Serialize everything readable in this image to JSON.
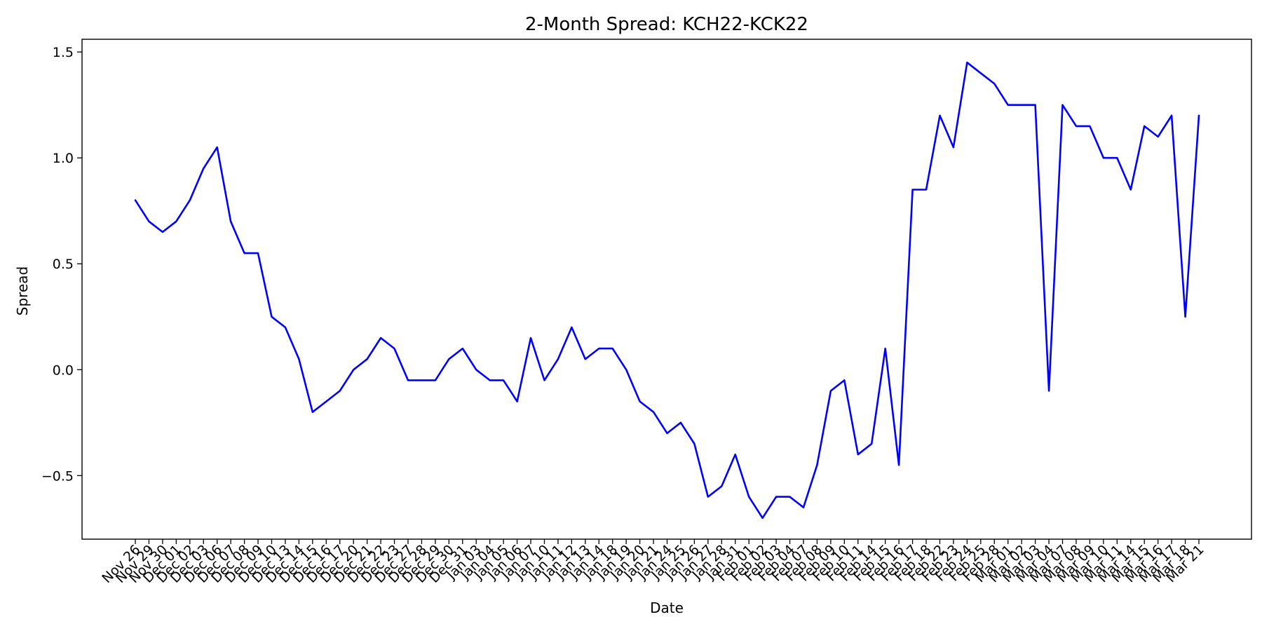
{
  "chart_data": {
    "type": "line",
    "title": "2-Month Spread: KCH22-KCK22",
    "xlabel": "Date",
    "ylabel": "Spread",
    "ylim": [
      -0.8,
      1.56
    ],
    "yticks": [
      -0.5,
      0.0,
      0.5,
      1.0,
      1.5
    ],
    "ytick_labels": [
      "−0.5",
      "0.0",
      "0.5",
      "1.0",
      "1.5"
    ],
    "grid": false,
    "line_color": "#0000ff",
    "categories": [
      "Nov 26",
      "Nov 29",
      "Nov 30",
      "Dec 01",
      "Dec 02",
      "Dec 03",
      "Dec 06",
      "Dec 07",
      "Dec 08",
      "Dec 09",
      "Dec 10",
      "Dec 13",
      "Dec 14",
      "Dec 15",
      "Dec 16",
      "Dec 17",
      "Dec 20",
      "Dec 21",
      "Dec 22",
      "Dec 23",
      "Dec 27",
      "Dec 28",
      "Dec 29",
      "Dec 30",
      "Dec 31",
      "Jan 03",
      "Jan 04",
      "Jan 05",
      "Jan 06",
      "Jan 07",
      "Jan 10",
      "Jan 11",
      "Jan 12",
      "Jan 13",
      "Jan 14",
      "Jan 18",
      "Jan 19",
      "Jan 20",
      "Jan 21",
      "Jan 24",
      "Jan 25",
      "Jan 26",
      "Jan 27",
      "Jan 28",
      "Jan 31",
      "Feb 01",
      "Feb 02",
      "Feb 03",
      "Feb 04",
      "Feb 07",
      "Feb 08",
      "Feb 09",
      "Feb 10",
      "Feb 11",
      "Feb 14",
      "Feb 15",
      "Feb 16",
      "Feb 17",
      "Feb 18",
      "Feb 22",
      "Feb 23",
      "Feb 24",
      "Feb 25",
      "Feb 28",
      "Mar 01",
      "Mar 02",
      "Mar 03",
      "Mar 04",
      "Mar 07",
      "Mar 08",
      "Mar 09",
      "Mar 10",
      "Mar 11",
      "Mar 14",
      "Mar 15",
      "Mar 16",
      "Mar 17",
      "Mar 18",
      "Mar 21"
    ],
    "series": [
      {
        "values": [
          0.8,
          0.7,
          0.65,
          0.7,
          0.8,
          0.95,
          1.05,
          0.7,
          0.55,
          0.55,
          0.25,
          0.2,
          0.05,
          -0.2,
          -0.15,
          -0.1,
          0.0,
          0.05,
          0.15,
          0.1,
          -0.05,
          -0.05,
          -0.05,
          0.05,
          0.1,
          0.0,
          -0.05,
          -0.05,
          -0.15,
          0.15,
          -0.05,
          0.05,
          0.2,
          0.05,
          0.1,
          0.1,
          0.0,
          -0.15,
          -0.2,
          -0.3,
          -0.25,
          -0.35,
          -0.6,
          -0.55,
          -0.4,
          -0.6,
          -0.7,
          -0.6,
          -0.6,
          -0.65,
          -0.45,
          -0.1,
          -0.05,
          -0.4,
          -0.35,
          0.1,
          -0.45,
          0.85,
          0.85,
          1.2,
          1.05,
          1.45,
          1.4,
          1.35,
          1.25,
          1.25,
          1.25,
          -0.1,
          1.25,
          1.15,
          1.15,
          1.0,
          1.0,
          0.85,
          1.15,
          1.1,
          1.2,
          0.25,
          1.2
        ]
      }
    ]
  }
}
